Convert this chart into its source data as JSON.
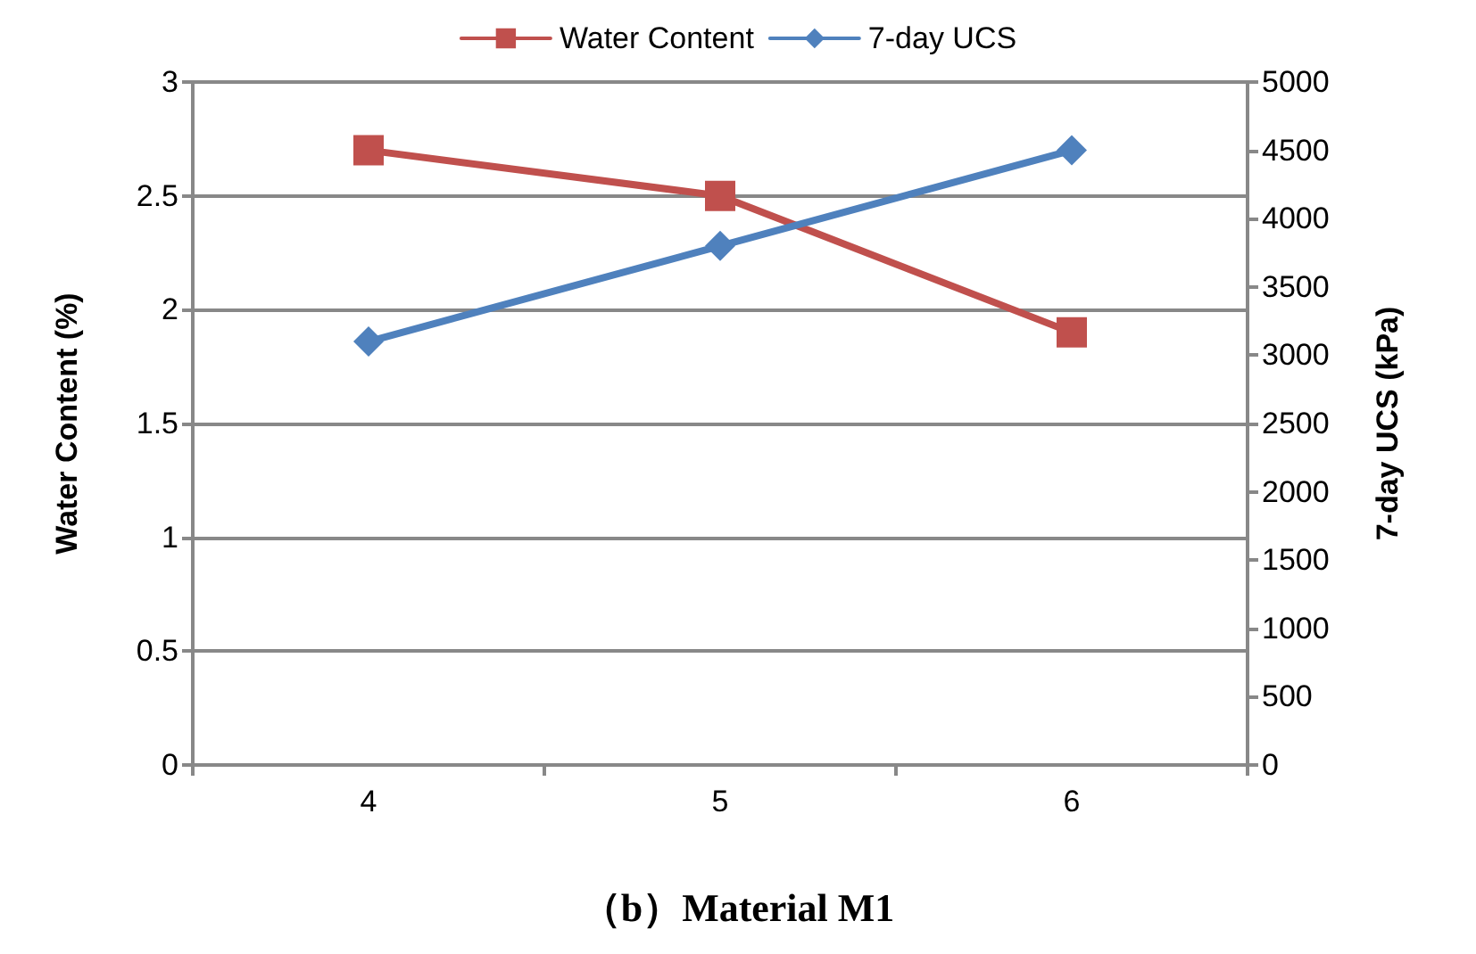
{
  "chart_data": {
    "type": "line",
    "title": "（b）Material M1",
    "ylabel": "Water Content (%)",
    "y2label": "7-day UCS (kPa)",
    "categories": [
      "4",
      "5",
      "6"
    ],
    "series": [
      {
        "name": "Water Content",
        "color": "#c0504d",
        "values": [
          2.7,
          2.5,
          1.9
        ],
        "marker": "square"
      },
      {
        "name": "7-day UCS",
        "color": "#4f81bd",
        "values": [
          3100,
          3800,
          4500
        ],
        "marker": "diamond",
        "axis": "y2"
      }
    ],
    "ylim": [
      0,
      3
    ],
    "yticks": [
      0,
      0.5,
      1,
      1.5,
      2,
      2.5,
      3
    ],
    "y2lim": [
      0,
      5000
    ],
    "y2ticks": [
      0,
      500,
      1000,
      1500,
      2000,
      2500,
      3000,
      3500,
      4000,
      4500,
      5000
    ],
    "grid": "y",
    "legend": "top",
    "line_style": "solid"
  }
}
